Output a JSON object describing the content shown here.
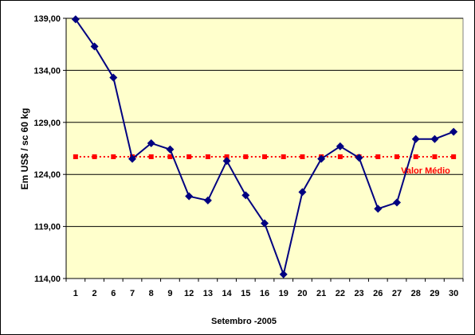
{
  "chart_data": {
    "type": "line",
    "title": "",
    "xlabel": "Setembro -2005",
    "ylabel": "Em US$ / sc 60 kg",
    "categories": [
      "1",
      "2",
      "6",
      "7",
      "8",
      "9",
      "12",
      "13",
      "14",
      "15",
      "16",
      "19",
      "20",
      "21",
      "22",
      "23",
      "26",
      "27",
      "28",
      "29",
      "30"
    ],
    "ylim": [
      114,
      139
    ],
    "yticks": [
      114,
      119,
      124,
      129,
      134,
      139
    ],
    "ytick_labels": [
      "114,00",
      "119,00",
      "124,00",
      "129,00",
      "134,00",
      "139,00"
    ],
    "grid": true,
    "series": [
      {
        "values": [
          138.9,
          136.3,
          133.3,
          125.5,
          127.0,
          126.4,
          121.9,
          121.5,
          125.3,
          122.0,
          119.3,
          114.4,
          122.3,
          125.5,
          126.7,
          125.6,
          120.7,
          121.3,
          127.4,
          127.4,
          128.1
        ],
        "color": "#000080",
        "marker": "diamond"
      },
      {
        "values": [
          125.7,
          125.7,
          125.7,
          125.7,
          125.7,
          125.7,
          125.7,
          125.7,
          125.7,
          125.7,
          125.7,
          125.7,
          125.7,
          125.7,
          125.7,
          125.7,
          125.7,
          125.7,
          125.7,
          125.7,
          125.7
        ],
        "color": "#ff0000",
        "marker": "square",
        "linestyle": "dotted"
      }
    ],
    "annotations": [
      {
        "text": "Valor Médio",
        "color": "#ff0000"
      }
    ],
    "plot_background": "#ffffcc"
  }
}
